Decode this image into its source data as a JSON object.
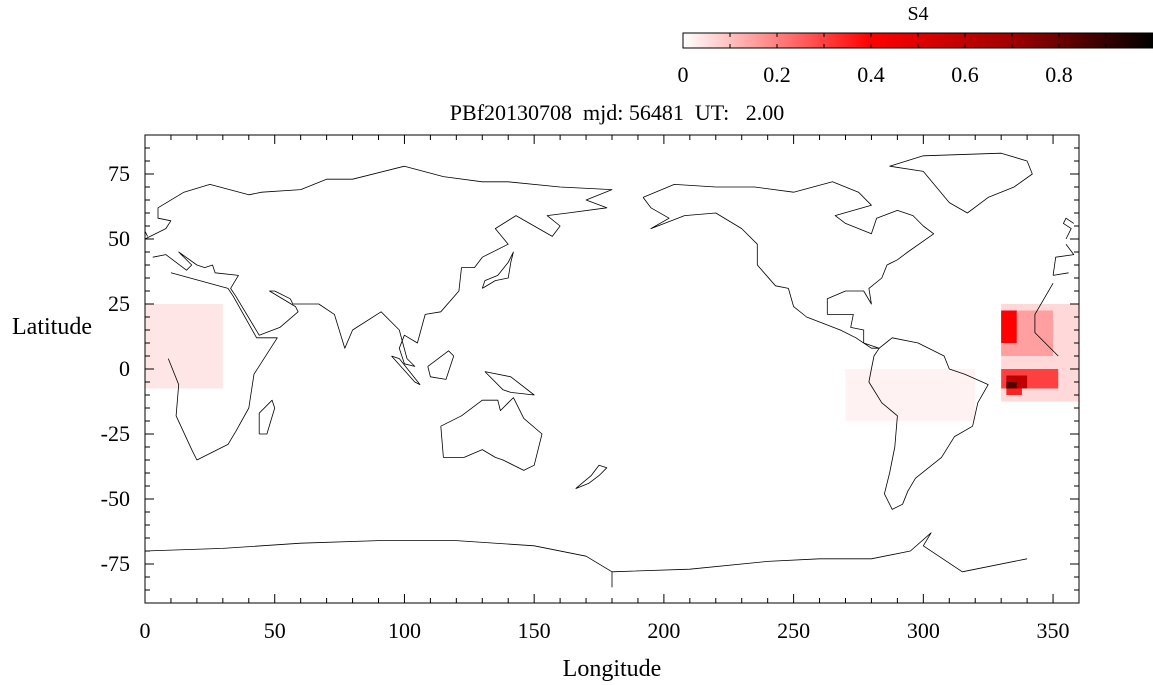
{
  "chart_data": {
    "type": "heatmap",
    "title": "PBf20130708  mjd: 56481  UT:   2.00",
    "xlabel": "Longitude",
    "ylabel": "Latitude",
    "xlim": [
      0,
      360
    ],
    "ylim": [
      -90,
      90
    ],
    "xticks": [
      0,
      50,
      100,
      150,
      200,
      250,
      300,
      350
    ],
    "yticks": [
      -75,
      -50,
      -25,
      0,
      25,
      50,
      75
    ],
    "colorbar": {
      "label": "S4",
      "range": [
        0,
        1
      ],
      "ticks": [
        0,
        0.2,
        0.4,
        0.6,
        0.8
      ],
      "tick_labels": [
        "0",
        "0.2",
        "0.4",
        "0.6",
        "0.8"
      ],
      "colormap": [
        "#ffffff",
        "#ff8080",
        "#ff0000",
        "#800000",
        "#000000"
      ],
      "placement": "top-right"
    },
    "cell_size_deg": [
      2,
      2.5
    ],
    "regions": [
      {
        "lon": [
          0,
          30
        ],
        "lat": [
          -7.5,
          25
        ],
        "value": 0.04
      },
      {
        "lon": [
          270,
          320
        ],
        "lat": [
          -20,
          0
        ],
        "value": 0.02
      },
      {
        "lon": [
          330,
          360
        ],
        "lat": [
          -12.5,
          25
        ],
        "value": 0.06
      },
      {
        "lon": [
          330,
          350
        ],
        "lat": [
          5,
          22.5
        ],
        "value": 0.15
      },
      {
        "lon": [
          330,
          336
        ],
        "lat": [
          10,
          22.5
        ],
        "value": 0.4
      },
      {
        "lon": [
          332,
          338
        ],
        "lat": [
          -10,
          -5
        ],
        "value": 0.35
      },
      {
        "lon": [
          330,
          352
        ],
        "lat": [
          -7.5,
          0
        ],
        "value": 0.3
      },
      {
        "lon": [
          332,
          340
        ],
        "lat": [
          -7.5,
          -2.5
        ],
        "value": 0.55
      },
      {
        "lon": [
          332,
          336
        ],
        "lat": [
          -7.5,
          -5
        ],
        "value": 0.8
      }
    ],
    "basemap": "world coastlines",
    "grid": false
  }
}
